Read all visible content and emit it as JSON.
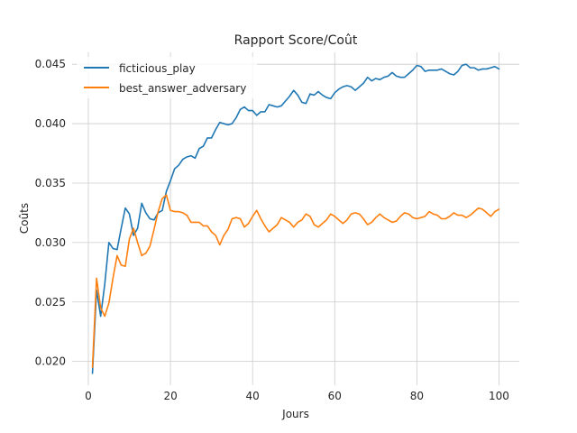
{
  "chart_data": {
    "type": "line",
    "title": "Rapport Score/Coût",
    "xlabel": "Jours",
    "ylabel": "Coûts",
    "xlim": [
      -3.95,
      104.95
    ],
    "ylim": [
      0.018,
      0.046
    ],
    "xticks": [
      0,
      20,
      40,
      60,
      80,
      100
    ],
    "yticks": [
      0.02,
      0.025,
      0.03,
      0.035,
      0.04,
      0.045
    ],
    "ytick_labels": [
      "0.020",
      "0.025",
      "0.030",
      "0.035",
      "0.040",
      "0.045"
    ],
    "grid": true,
    "legend_position": "top-left",
    "x": [
      1,
      2,
      3,
      4,
      5,
      6,
      7,
      8,
      9,
      10,
      11,
      12,
      13,
      14,
      15,
      16,
      17,
      18,
      19,
      20,
      21,
      22,
      23,
      24,
      25,
      26,
      27,
      28,
      29,
      30,
      31,
      32,
      33,
      34,
      35,
      36,
      37,
      38,
      39,
      40,
      41,
      42,
      43,
      44,
      45,
      46,
      47,
      48,
      49,
      50,
      51,
      52,
      53,
      54,
      55,
      56,
      57,
      58,
      59,
      60,
      61,
      62,
      63,
      64,
      65,
      66,
      67,
      68,
      69,
      70,
      71,
      72,
      73,
      74,
      75,
      76,
      77,
      78,
      79,
      80,
      81,
      82,
      83,
      84,
      85,
      86,
      87,
      88,
      89,
      90,
      91,
      92,
      93,
      94,
      95,
      96,
      97,
      98,
      99,
      100
    ],
    "series": [
      {
        "name": "ficticious_play",
        "color": "#1f77b4",
        "values": [
          0.019,
          0.026,
          0.0238,
          0.0265,
          0.03,
          0.0295,
          0.0294,
          0.0312,
          0.0329,
          0.0324,
          0.0306,
          0.0312,
          0.0333,
          0.0325,
          0.032,
          0.0319,
          0.0325,
          0.0327,
          0.0343,
          0.0352,
          0.0362,
          0.0365,
          0.037,
          0.0372,
          0.0373,
          0.0371,
          0.0379,
          0.0381,
          0.0388,
          0.0388,
          0.0395,
          0.0401,
          0.04,
          0.0399,
          0.04,
          0.0405,
          0.0412,
          0.0414,
          0.0411,
          0.0411,
          0.0407,
          0.041,
          0.041,
          0.0416,
          0.0415,
          0.0414,
          0.0415,
          0.0419,
          0.0423,
          0.0428,
          0.0424,
          0.0418,
          0.0417,
          0.0425,
          0.0424,
          0.0427,
          0.0424,
          0.0422,
          0.0421,
          0.0426,
          0.0429,
          0.0431,
          0.0432,
          0.0431,
          0.0428,
          0.0431,
          0.0434,
          0.0439,
          0.0436,
          0.0438,
          0.0437,
          0.0439,
          0.044,
          0.0443,
          0.044,
          0.0439,
          0.0439,
          0.0442,
          0.0445,
          0.0449,
          0.0448,
          0.0444,
          0.0445,
          0.0445,
          0.0445,
          0.0446,
          0.0444,
          0.0442,
          0.0441,
          0.0444,
          0.0449,
          0.045,
          0.0447,
          0.0447,
          0.0445,
          0.0446,
          0.0446,
          0.0447,
          0.0448,
          0.0446
        ]
      },
      {
        "name": "best_answer_adversary",
        "color": "#ff7f0e",
        "values": [
          0.0195,
          0.027,
          0.0245,
          0.0238,
          0.0249,
          0.027,
          0.0289,
          0.0281,
          0.028,
          0.0303,
          0.0312,
          0.03,
          0.0289,
          0.0291,
          0.0297,
          0.0311,
          0.0326,
          0.0337,
          0.034,
          0.0327,
          0.0326,
          0.0326,
          0.0325,
          0.0323,
          0.0317,
          0.0317,
          0.0317,
          0.0314,
          0.0314,
          0.0309,
          0.0306,
          0.0298,
          0.0306,
          0.0311,
          0.032,
          0.0321,
          0.032,
          0.0313,
          0.0316,
          0.0322,
          0.0327,
          0.032,
          0.0314,
          0.0309,
          0.0312,
          0.0315,
          0.0321,
          0.0319,
          0.0317,
          0.0313,
          0.0317,
          0.0319,
          0.0324,
          0.0322,
          0.0315,
          0.0313,
          0.0316,
          0.0319,
          0.0324,
          0.0322,
          0.0319,
          0.0316,
          0.0319,
          0.0324,
          0.0325,
          0.0324,
          0.032,
          0.0315,
          0.0317,
          0.0321,
          0.0324,
          0.0321,
          0.0319,
          0.0317,
          0.0318,
          0.0322,
          0.0325,
          0.0324,
          0.0321,
          0.032,
          0.0321,
          0.0322,
          0.0326,
          0.0324,
          0.0323,
          0.032,
          0.032,
          0.0322,
          0.0325,
          0.0323,
          0.0323,
          0.0321,
          0.0323,
          0.0326,
          0.0329,
          0.0328,
          0.0325,
          0.0322,
          0.0326,
          0.0328
        ]
      }
    ]
  }
}
